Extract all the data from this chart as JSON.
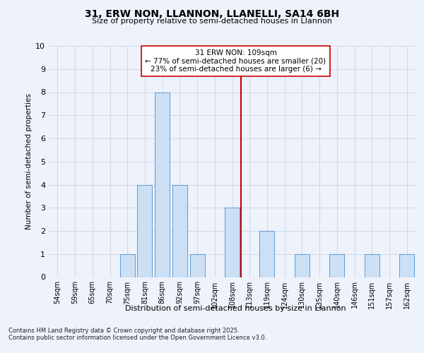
{
  "title_line1": "31, ERW NON, LLANNON, LLANELLI, SA14 6BH",
  "title_line2": "Size of property relative to semi-detached houses in Llannon",
  "xlabel": "Distribution of semi-detached houses by size in Llannon",
  "ylabel": "Number of semi-detached properties",
  "categories": [
    "54sqm",
    "59sqm",
    "65sqm",
    "70sqm",
    "75sqm",
    "81sqm",
    "86sqm",
    "92sqm",
    "97sqm",
    "102sqm",
    "108sqm",
    "113sqm",
    "119sqm",
    "124sqm",
    "130sqm",
    "135sqm",
    "140sqm",
    "146sqm",
    "151sqm",
    "157sqm",
    "162sqm"
  ],
  "values": [
    0,
    0,
    0,
    0,
    1,
    4,
    8,
    4,
    1,
    0,
    3,
    0,
    2,
    0,
    1,
    0,
    1,
    0,
    1,
    0,
    1
  ],
  "bar_color": "#cce0f5",
  "bar_edge_color": "#5b9bd5",
  "grid_color": "#d0d8e8",
  "vline_index": 10,
  "vline_color": "#cc0000",
  "annotation_text": "31 ERW NON: 109sqm\n← 77% of semi-detached houses are smaller (20)\n23% of semi-detached houses are larger (6) →",
  "annotation_box_color": "#ffffff",
  "annotation_edge_color": "#cc0000",
  "annotation_fontsize": 7.5,
  "ylim": [
    0,
    10
  ],
  "yticks": [
    0,
    1,
    2,
    3,
    4,
    5,
    6,
    7,
    8,
    9,
    10
  ],
  "footnote": "Contains HM Land Registry data © Crown copyright and database right 2025.\nContains public sector information licensed under the Open Government Licence v3.0.",
  "background_color": "#eef2fb",
  "plot_bg_color": "#eef2fb",
  "title1_fontsize": 10,
  "title2_fontsize": 8,
  "ylabel_fontsize": 7.5,
  "xlabel_fontsize": 8,
  "tick_fontsize": 7,
  "ytick_fontsize": 8
}
